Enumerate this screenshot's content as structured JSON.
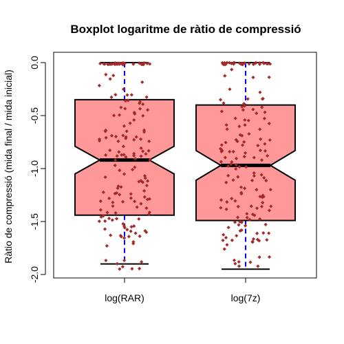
{
  "chart_data": {
    "type": "boxplot",
    "title": "Boxplot logaritme de ràtio de compressió",
    "xlabel": "",
    "ylabel": "Ràtio de compressió (mida final / mida inicial)",
    "ylim": [
      -2.0,
      0.05
    ],
    "yticks": [
      0.0,
      -0.5,
      -1.0,
      -1.5,
      -2.0
    ],
    "ytick_labels": [
      "0.0",
      "-0.5",
      "-1.0",
      "-1.5",
      "-2.0"
    ],
    "notched": true,
    "grid": false,
    "colors": {
      "box_fill": "#ff9999",
      "whisker": "#0000ff",
      "points": "#a52a2a",
      "median": "#000000"
    },
    "series": [
      {
        "name": "log(RAR)",
        "min": -1.9,
        "q1": -1.44,
        "median": -0.92,
        "q3": -0.35,
        "max": 0.0,
        "notch": [
          -1.05,
          -0.79
        ]
      },
      {
        "name": "log(7z)",
        "min": -1.95,
        "q1": -1.49,
        "median": -0.97,
        "q3": -0.4,
        "max": 0.0,
        "notch": [
          -1.11,
          -0.83
        ]
      }
    ]
  }
}
